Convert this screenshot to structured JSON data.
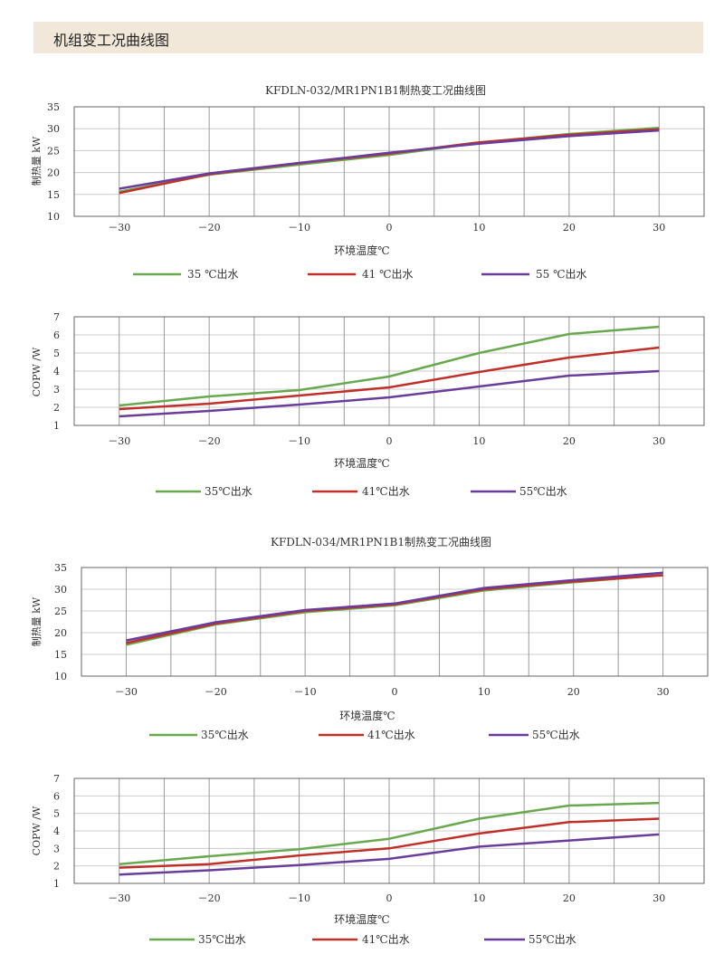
{
  "page": {
    "header_title": "机组变工况曲线图"
  },
  "colors": {
    "green": "#6aa84f",
    "red": "#c0302b",
    "purple": "#6a3d9a",
    "grid": "#999999",
    "frame": "#666666"
  },
  "chart_data": [
    {
      "type": "line",
      "title": "KFDLN-032/MR1PN1B1制热变工况曲线图",
      "xlabel": "环境温度℃",
      "ylabel": "制热量 kW",
      "categories": [
        "－30",
        "－20",
        "－10",
        "0",
        "10",
        "20",
        "30"
      ],
      "x": [
        -30,
        -20,
        -10,
        0,
        10,
        20,
        30
      ],
      "ylim": [
        10,
        35
      ],
      "yticks": [
        10,
        15,
        20,
        25,
        30,
        35
      ],
      "series": [
        {
          "name": "35 ℃出水",
          "color": "#6aa84f",
          "values": [
            15.6,
            19.5,
            21.8,
            24.0,
            26.8,
            28.8,
            30.2
          ]
        },
        {
          "name": "41 ℃出水",
          "color": "#c0302b",
          "values": [
            15.3,
            19.6,
            22.1,
            24.3,
            26.9,
            28.6,
            29.9
          ]
        },
        {
          "name": "55 ℃出水",
          "color": "#6a3d9a",
          "values": [
            16.3,
            19.8,
            22.2,
            24.5,
            26.6,
            28.3,
            29.6
          ]
        }
      ]
    },
    {
      "type": "line",
      "title": "",
      "xlabel": "环境温度℃",
      "ylabel": "COPW /W",
      "categories": [
        "－30",
        "－20",
        "－10",
        "0",
        "10",
        "20",
        "30"
      ],
      "x": [
        -30,
        -20,
        -10,
        0,
        10,
        20,
        30
      ],
      "ylim": [
        1,
        7
      ],
      "yticks": [
        1,
        2,
        3,
        4,
        5,
        6,
        7
      ],
      "series": [
        {
          "name": "35℃出水",
          "color": "#6aa84f",
          "values": [
            2.1,
            2.6,
            2.95,
            3.7,
            5.0,
            6.05,
            6.45
          ]
        },
        {
          "name": "41℃出水",
          "color": "#c0302b",
          "values": [
            1.9,
            2.2,
            2.65,
            3.1,
            3.95,
            4.75,
            5.3
          ]
        },
        {
          "name": "55℃出水",
          "color": "#6a3d9a",
          "values": [
            1.5,
            1.8,
            2.15,
            2.55,
            3.15,
            3.75,
            4.0
          ]
        }
      ]
    },
    {
      "type": "line",
      "title": "KFDLN-034/MR1PN1B1制热变工况曲线图",
      "xlabel": "环境温度℃",
      "ylabel": "制热量 kW",
      "categories": [
        "－30",
        "－20",
        "－10",
        "0",
        "10",
        "20",
        "30"
      ],
      "x": [
        -30,
        -20,
        -10,
        0,
        10,
        20,
        30
      ],
      "ylim": [
        10,
        35
      ],
      "yticks": [
        10,
        15,
        20,
        25,
        30,
        35
      ],
      "series": [
        {
          "name": "35℃出水",
          "color": "#6aa84f",
          "values": [
            17.2,
            21.9,
            24.7,
            26.3,
            29.7,
            31.6,
            33.3
          ]
        },
        {
          "name": "41℃出水",
          "color": "#c0302b",
          "values": [
            17.6,
            22.1,
            25.0,
            26.5,
            30.0,
            31.8,
            33.2
          ]
        },
        {
          "name": "55℃出水",
          "color": "#6a3d9a",
          "values": [
            18.2,
            22.4,
            25.2,
            26.7,
            30.3,
            32.1,
            33.8
          ]
        }
      ]
    },
    {
      "type": "line",
      "title": "",
      "xlabel": "环境温度℃",
      "ylabel": "COPW /W",
      "categories": [
        "－30",
        "－20",
        "－10",
        "0",
        "10",
        "20",
        "30"
      ],
      "x": [
        -30,
        -20,
        -10,
        0,
        10,
        20,
        30
      ],
      "ylim": [
        1,
        7
      ],
      "yticks": [
        1,
        2,
        3,
        4,
        5,
        6,
        7
      ],
      "series": [
        {
          "name": "35℃出水",
          "color": "#6aa84f",
          "values": [
            2.1,
            2.55,
            2.95,
            3.55,
            4.7,
            5.45,
            5.6
          ]
        },
        {
          "name": "41℃出水",
          "color": "#c0302b",
          "values": [
            1.9,
            2.1,
            2.6,
            3.0,
            3.85,
            4.5,
            4.7
          ]
        },
        {
          "name": "55℃出水",
          "color": "#6a3d9a",
          "values": [
            1.5,
            1.75,
            2.05,
            2.4,
            3.1,
            3.45,
            3.8
          ]
        }
      ]
    }
  ]
}
